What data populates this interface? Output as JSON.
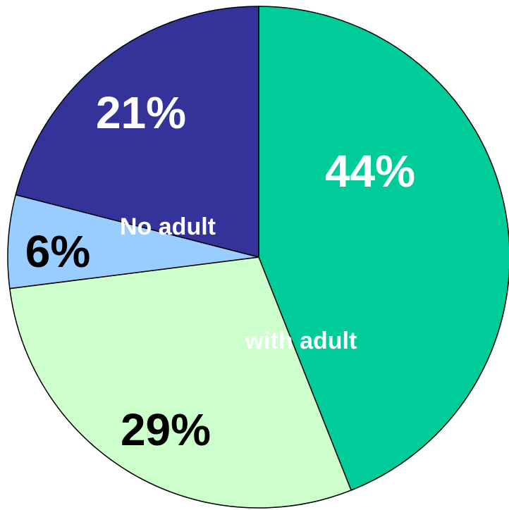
{
  "chart_data": {
    "type": "pie",
    "values": [
      44,
      29,
      6,
      21
    ],
    "value_labels": [
      "44%",
      "29%",
      "6%",
      "21%"
    ],
    "colors": [
      "#00cc99",
      "#ccffcc",
      "#99ccff",
      "#333399"
    ],
    "value_label_colors": [
      "#ffffff",
      "#000000",
      "#000000",
      "#ffffff"
    ],
    "annotations": [
      "No adult",
      "with adult"
    ]
  }
}
